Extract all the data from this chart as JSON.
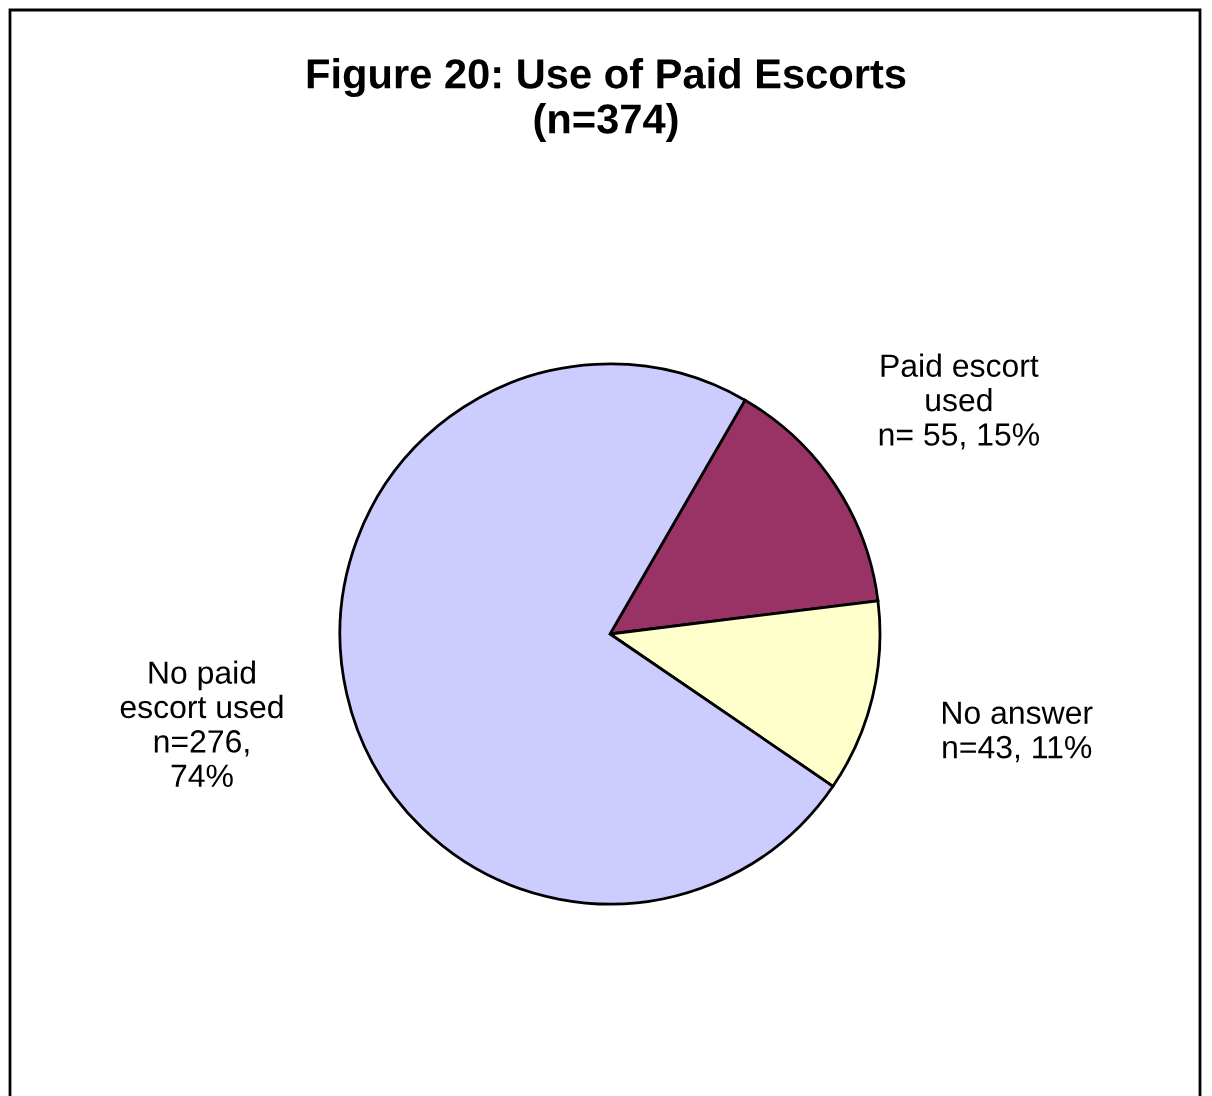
{
  "chart_data": {
    "type": "pie",
    "title": "Figure 20: Use of Paid Escorts\n(n=374)",
    "categories": [
      "Paid escort\nused",
      "No answer",
      "No paid\nescort used"
    ],
    "values": [
      55,
      43,
      276
    ],
    "value_labels": [
      "n= 55, 15%",
      "n=43, 11%",
      "n=276,\n74%"
    ],
    "colors": [
      "#993366",
      "#ffffcc",
      "#ccccff"
    ],
    "legend": false
  }
}
